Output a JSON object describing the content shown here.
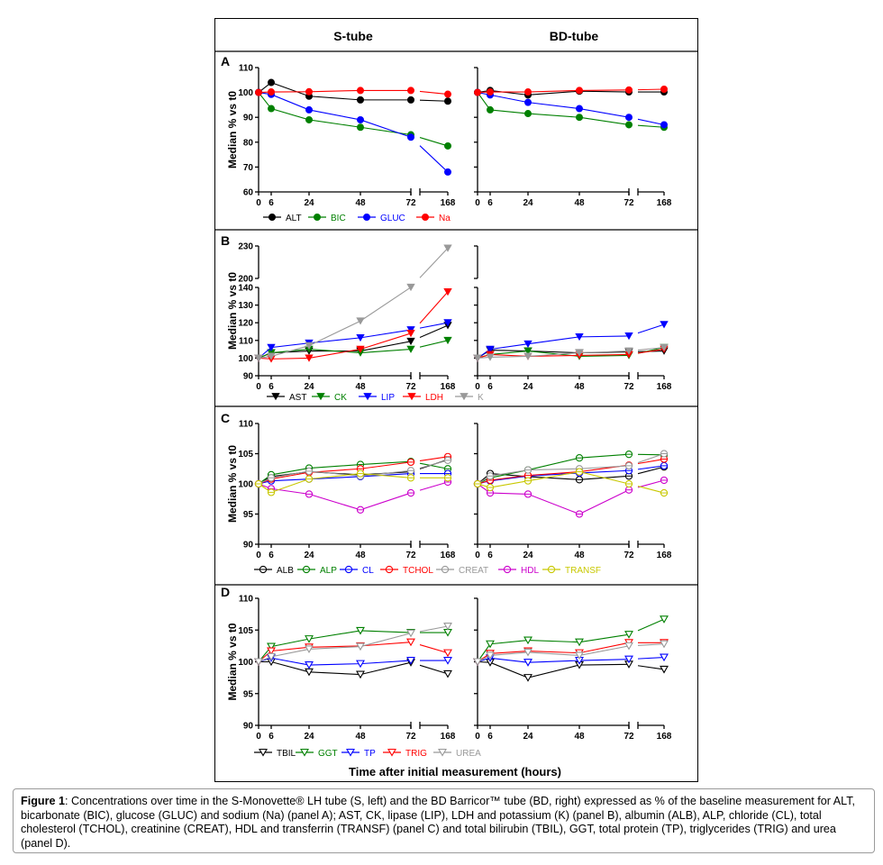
{
  "column_titles": {
    "left": "S-tube",
    "right": "BD-tube"
  },
  "x_axis_label": "Time after initial measurement (hours)",
  "caption": {
    "lead": "Figure 1",
    "text": ": Concentrations over time in the S-Monovette® LH tube (S, left) and the BD Barricor™ tube (BD, right) expressed as % of the baseline measurement for ALT, bicarbonate (BIC), glucose (GLUC) and sodium (Na) (panel A); AST, CK, lipase (LIP), LDH and potassium (K) (panel B), albumin (ALB), ALP, chloride (CL), total cholesterol (TCHOL), creatinine (CREAT), HDL and transferrin (TRANSF) (panel C) and total bilirubin (TBIL), GGT, total protein (TP), triglycerides (TRIG) and urea (panel D)."
  },
  "chart_data": [
    {
      "panel": "A",
      "type": "line",
      "marker": "circle-filled",
      "ylabel": "Median % vs t0",
      "xlabel": "Time after initial measurement (hours)",
      "x": [
        0,
        6,
        24,
        48,
        72,
        168
      ],
      "x_tick_labels": [
        "0",
        "6",
        "24",
        "48",
        "72",
        "168"
      ],
      "x_axis_break": "between 72 and 168",
      "ylim": [
        60,
        110
      ],
      "y_ticks": [
        60,
        70,
        80,
        90,
        100,
        110
      ],
      "legend_position": "bottom",
      "series": [
        {
          "name": "ALT",
          "color": "#000000",
          "S": [
            100,
            104,
            98.5,
            97,
            97,
            96.5
          ],
          "BD": [
            100,
            100.8,
            99,
            100.5,
            100.2,
            100.2
          ]
        },
        {
          "name": "BIC",
          "color": "#008000",
          "S": [
            100,
            93.5,
            89,
            86,
            83,
            78.5
          ],
          "BD": [
            100,
            93,
            91.5,
            90,
            87,
            86
          ]
        },
        {
          "name": "GLUC",
          "color": "#0000ff",
          "S": [
            100,
            99.2,
            93,
            89,
            82,
            68
          ],
          "BD": [
            100,
            99,
            96,
            93.5,
            90,
            87
          ]
        },
        {
          "name": "Na",
          "color": "#ff0000",
          "S": [
            100,
            100.2,
            100.3,
            100.8,
            100.8,
            99.3
          ],
          "BD": [
            100,
            100.2,
            100.2,
            100.8,
            101,
            101.3
          ]
        }
      ]
    },
    {
      "panel": "B",
      "type": "line",
      "marker": "triangle-down-filled",
      "ylabel": "Median % vs t0",
      "x": [
        0,
        6,
        24,
        48,
        72,
        168
      ],
      "x_tick_labels": [
        "0",
        "6",
        "24",
        "48",
        "72",
        "168"
      ],
      "x_axis_break": "between 72 and 168",
      "ylim": [
        90,
        230
      ],
      "y_axis_break": "between 140 and 200",
      "y_ticks": [
        90,
        100,
        110,
        120,
        130,
        140,
        200,
        230
      ],
      "legend_position": "bottom",
      "series": [
        {
          "name": "AST",
          "color": "#000000",
          "S": [
            100,
            103,
            104,
            104,
            109.5,
            118.5
          ],
          "BD": [
            100,
            104.5,
            104,
            103,
            103.5,
            104
          ]
        },
        {
          "name": "CK",
          "color": "#008000",
          "S": [
            100,
            103,
            105,
            103,
            105,
            110
          ],
          "BD": [
            100,
            102,
            104,
            101,
            101.5,
            106
          ]
        },
        {
          "name": "LIP",
          "color": "#0000ff",
          "S": [
            100,
            106,
            108.5,
            111.5,
            116,
            120
          ],
          "BD": [
            100,
            105,
            108,
            112,
            112.5,
            119
          ]
        },
        {
          "name": "LDH",
          "color": "#ff0000",
          "S": [
            100,
            99.5,
            100,
            105,
            114,
            137.5
          ],
          "BD": [
            100,
            102,
            101,
            101.5,
            102,
            105
          ]
        },
        {
          "name": "K",
          "color": "#999999",
          "S": [
            100,
            101,
            107,
            121,
            141,
            228
          ],
          "BD": [
            100,
            100.5,
            101,
            103,
            104,
            106
          ]
        }
      ]
    },
    {
      "panel": "C",
      "type": "line",
      "marker": "circle-open",
      "ylabel": "Median % vs t0",
      "x": [
        0,
        6,
        24,
        48,
        72,
        168
      ],
      "x_tick_labels": [
        "0",
        "6",
        "24",
        "48",
        "72",
        "168"
      ],
      "x_axis_break": "between 72 and 168",
      "ylim": [
        90,
        110
      ],
      "y_ticks": [
        90,
        95,
        100,
        105,
        110
      ],
      "legend_position": "bottom",
      "series": [
        {
          "name": "ALB",
          "color": "#000000",
          "S": [
            100,
            101.2,
            102,
            101.5,
            102,
            104
          ],
          "BD": [
            100,
            101.7,
            101.2,
            100.7,
            101.3,
            102.8
          ]
        },
        {
          "name": "ALP",
          "color": "#008000",
          "S": [
            100,
            101.5,
            102.6,
            103.2,
            103.7,
            102.5
          ],
          "BD": [
            100,
            101,
            102.3,
            104.3,
            104.9,
            104.8
          ]
        },
        {
          "name": "CL",
          "color": "#0000ff",
          "S": [
            100,
            100.5,
            100.8,
            101.2,
            101.7,
            101.7
          ],
          "BD": [
            100,
            100.5,
            101.3,
            101.8,
            102.2,
            103
          ]
        },
        {
          "name": "TCHOL",
          "color": "#ff0000",
          "S": [
            100,
            100.8,
            101.9,
            102.5,
            103.6,
            104.5
          ],
          "BD": [
            100,
            100.6,
            101.4,
            102,
            103.1,
            104.1
          ]
        },
        {
          "name": "CREAT",
          "color": "#999999",
          "S": [
            100,
            101,
            102.1,
            101.3,
            102.2,
            103.9
          ],
          "BD": [
            100,
            101.3,
            102.3,
            102.5,
            103,
            105
          ]
        },
        {
          "name": "HDL",
          "color": "#cc00cc",
          "S": [
            100,
            99.2,
            98.3,
            95.7,
            98.5,
            100.3
          ],
          "BD": [
            100,
            98.5,
            98.3,
            95,
            99,
            100.6
          ]
        },
        {
          "name": "TRANSF",
          "color": "#c8c800",
          "S": [
            100,
            98.6,
            100.8,
            101.7,
            101,
            101
          ],
          "BD": [
            100,
            99.4,
            100.5,
            102,
            100,
            98.5
          ]
        }
      ]
    },
    {
      "panel": "D",
      "type": "line",
      "marker": "triangle-down-open",
      "ylabel": "Median % vs t0",
      "x": [
        0,
        6,
        24,
        48,
        72,
        168
      ],
      "x_tick_labels": [
        "0",
        "6",
        "24",
        "48",
        "72",
        "168"
      ],
      "x_axis_break": "between 72 and 168",
      "ylim": [
        90,
        110
      ],
      "y_ticks": [
        90,
        95,
        100,
        105,
        110
      ],
      "legend_position": "bottom",
      "series": [
        {
          "name": "TBIL",
          "color": "#000000",
          "S": [
            100,
            100,
            98.4,
            98,
            99.9,
            98.1
          ],
          "BD": [
            100,
            99.9,
            97.5,
            99.5,
            99.6,
            98.8
          ]
        },
        {
          "name": "GGT",
          "color": "#008000",
          "S": [
            100,
            102.4,
            103.6,
            104.9,
            104.6,
            104.6
          ],
          "BD": [
            100,
            102.8,
            103.4,
            103.1,
            104.3,
            106.7
          ]
        },
        {
          "name": "TP",
          "color": "#0000ff",
          "S": [
            100,
            100.6,
            99.5,
            99.7,
            100.2,
            100.2
          ],
          "BD": [
            100,
            100.6,
            99.9,
            100.2,
            100.4,
            100.7
          ]
        },
        {
          "name": "TRIG",
          "color": "#ff0000",
          "S": [
            100,
            101.7,
            102.3,
            102.5,
            103.1,
            101.4
          ],
          "BD": [
            100,
            101.3,
            101.7,
            101.4,
            103,
            103
          ]
        },
        {
          "name": "UREA",
          "color": "#999999",
          "S": [
            100,
            100.8,
            102,
            102.4,
            104.5,
            105.6
          ],
          "BD": [
            100,
            101,
            101.5,
            101,
            102.5,
            102.8
          ]
        }
      ]
    }
  ]
}
